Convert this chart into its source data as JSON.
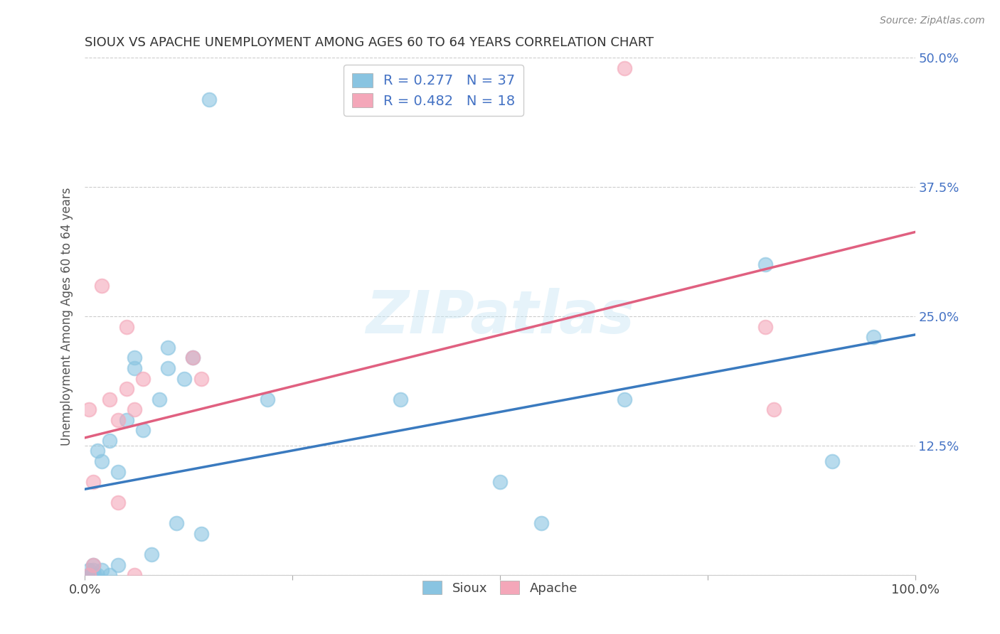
{
  "title": "SIOUX VS APACHE UNEMPLOYMENT AMONG AGES 60 TO 64 YEARS CORRELATION CHART",
  "source": "Source: ZipAtlas.com",
  "ylabel": "Unemployment Among Ages 60 to 64 years",
  "sioux_color": "#89c4e1",
  "apache_color": "#f4a7b9",
  "sioux_line_color": "#3a7abf",
  "apache_line_color": "#e06080",
  "background_color": "#ffffff",
  "watermark": "ZIPatlas",
  "R_sioux": 0.277,
  "N_sioux": 37,
  "R_apache": 0.482,
  "N_apache": 18,
  "xlim": [
    0.0,
    1.0
  ],
  "ylim": [
    0.0,
    0.5
  ],
  "xticks": [
    0.0,
    0.25,
    0.5,
    0.75,
    1.0
  ],
  "xtick_labels": [
    "0.0%",
    "",
    "",
    "",
    "100.0%"
  ],
  "yticks": [
    0.0,
    0.125,
    0.25,
    0.375,
    0.5
  ],
  "ytick_labels_right": [
    "",
    "12.5%",
    "25.0%",
    "37.5%",
    "50.0%"
  ],
  "sioux_x": [
    0.005,
    0.005,
    0.007,
    0.008,
    0.01,
    0.01,
    0.01,
    0.012,
    0.015,
    0.015,
    0.02,
    0.02,
    0.03,
    0.03,
    0.04,
    0.04,
    0.05,
    0.06,
    0.06,
    0.07,
    0.08,
    0.09,
    0.1,
    0.1,
    0.11,
    0.12,
    0.13,
    0.14,
    0.15,
    0.22,
    0.38,
    0.5,
    0.55,
    0.65,
    0.82,
    0.9,
    0.95
  ],
  "sioux_y": [
    0.0,
    0.005,
    0.0,
    0.0,
    0.0,
    0.005,
    0.01,
    0.0,
    0.0,
    0.12,
    0.005,
    0.11,
    0.0,
    0.13,
    0.01,
    0.1,
    0.15,
    0.2,
    0.21,
    0.14,
    0.02,
    0.17,
    0.22,
    0.2,
    0.05,
    0.19,
    0.21,
    0.04,
    0.46,
    0.17,
    0.17,
    0.09,
    0.05,
    0.17,
    0.3,
    0.11,
    0.23
  ],
  "apache_x": [
    0.005,
    0.005,
    0.01,
    0.01,
    0.02,
    0.03,
    0.04,
    0.04,
    0.05,
    0.05,
    0.06,
    0.06,
    0.07,
    0.13,
    0.14,
    0.65,
    0.82,
    0.83
  ],
  "apache_y": [
    0.0,
    0.16,
    0.01,
    0.09,
    0.28,
    0.17,
    0.15,
    0.07,
    0.18,
    0.24,
    0.0,
    0.16,
    0.19,
    0.21,
    0.19,
    0.49,
    0.24,
    0.16
  ],
  "legend_label_sioux": "Sioux",
  "legend_label_apache": "Apache"
}
